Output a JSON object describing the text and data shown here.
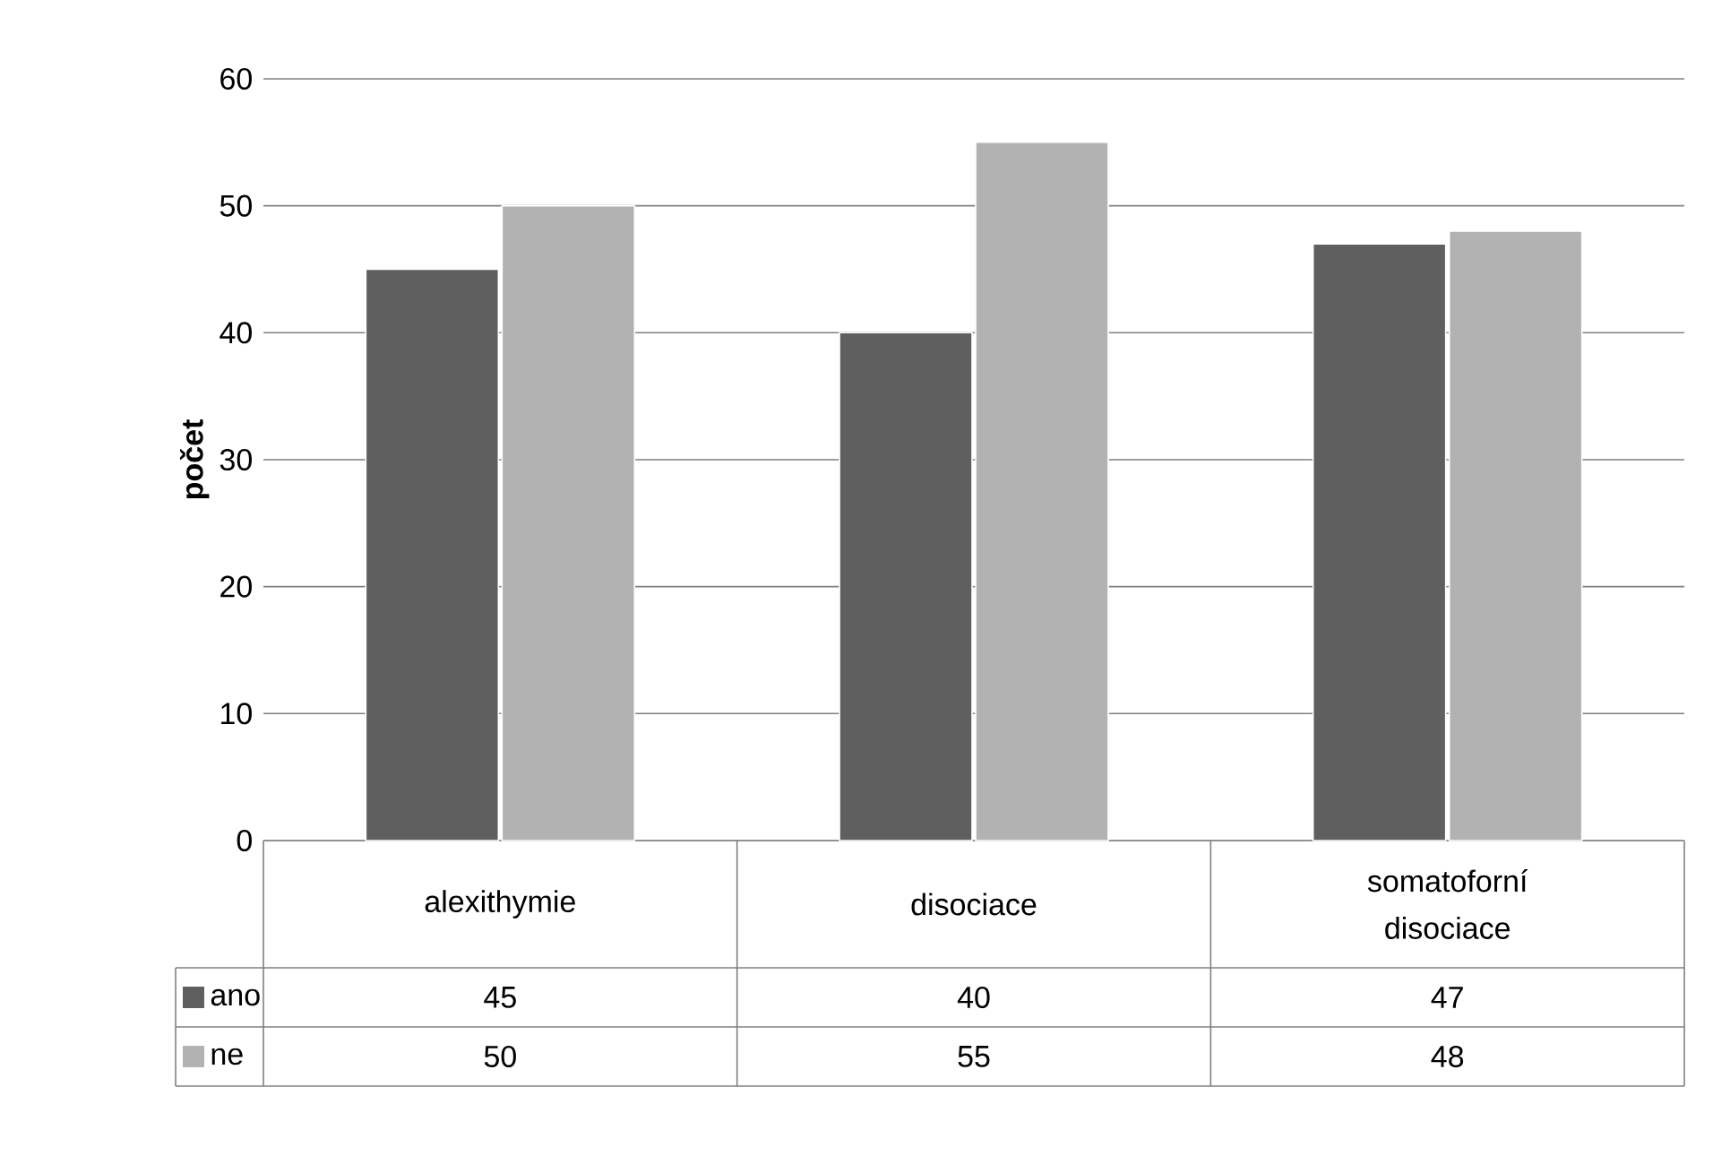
{
  "chart_data": {
    "type": "bar",
    "ylabel": "počet",
    "categories": [
      "alexithymie",
      "disociace",
      "somatoforní disociace"
    ],
    "series": [
      {
        "name": "ano",
        "color": "#5f5f5f",
        "values": [
          45,
          40,
          47
        ]
      },
      {
        "name": "ne",
        "color": "#b2b2b2",
        "values": [
          50,
          55,
          48
        ]
      }
    ],
    "ylim": [
      0,
      60
    ],
    "yticks": [
      0,
      10,
      20,
      30,
      40,
      50,
      60
    ],
    "grid": "y",
    "legend": "bottom",
    "data_labels": true
  }
}
